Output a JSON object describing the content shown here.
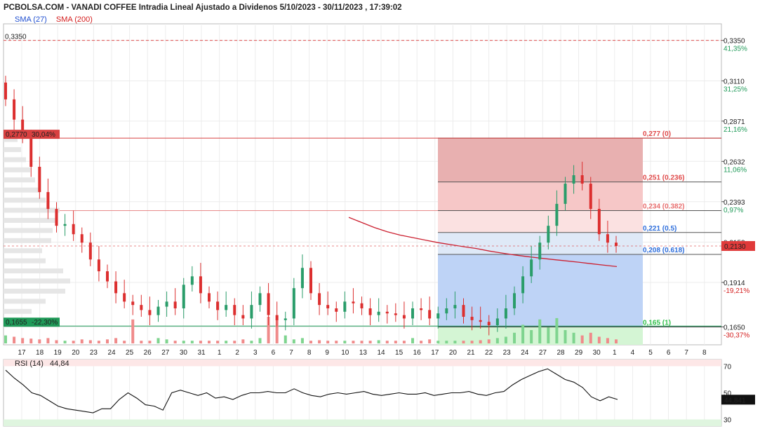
{
  "header": {
    "title": "PCBOLSA.COM - VANADI COFFEE Intradia Lineal Ajustado a Dividenos 5/10/2023 - 30/11/2023 , 17:39:02",
    "legend_sma27": "SMA (27)",
    "legend_sma200": "SMA (200)"
  },
  "colors": {
    "up": "#2a9d6a",
    "down": "#dc2f2f",
    "sma200": "#cc2030",
    "fib_red": "#e04a4a",
    "fib_blue": "#2f6fdc",
    "volume_up": "#7fd48f",
    "volume_down": "#f08a8a",
    "grid": "#ececec"
  },
  "chart_data": [
    {
      "type": "candlestick",
      "title": "PCBOLSA.COM - VANADI COFFEE Intradia Lineal Ajustado a Dividenos 5/10/2023 - 30/11/2023 , 17:39:02",
      "y_ticks": [
        "0,3350",
        "0,3110",
        "0,2871",
        "0,2632",
        "0,2393",
        "0,2153",
        "0,1914",
        "0,1650"
      ],
      "y_pct_ticks": [
        "41,35%",
        "31,25%",
        "21,16%",
        "11,06%",
        "0,97%",
        "-19,21%",
        "-30,37%"
      ],
      "x_ticks": [
        "17",
        "18",
        "19",
        "20",
        "23",
        "24",
        "25",
        "26",
        "27",
        "30",
        "31",
        "1",
        "2",
        "3",
        "6",
        "7",
        "8",
        "9",
        "10",
        "13",
        "14",
        "15",
        "16",
        "17",
        "20",
        "21",
        "22",
        "23",
        "24",
        "27",
        "28",
        "29",
        "30",
        "1",
        "4",
        "5",
        "6",
        "7",
        "8"
      ],
      "ylim": [
        0.1577,
        0.3465
      ],
      "max_label": "0,3350",
      "current_price_label": "0,2130",
      "grid": true,
      "series": [
        {
          "name": "SMA (200)",
          "kind": "line",
          "values": [
            0.23,
            0.227,
            0.224,
            0.2215,
            0.2195,
            0.218,
            0.2165,
            0.215,
            0.2138,
            0.2126,
            0.2115,
            0.21,
            0.2088,
            0.2077,
            0.2067,
            0.2058,
            0.205,
            0.2042,
            0.2034,
            0.2025,
            0.2016,
            0.2008
          ]
        }
      ],
      "price_close": [
        0.3,
        0.288,
        0.278,
        0.26,
        0.245,
        0.235,
        0.225,
        0.226,
        0.22,
        0.215,
        0.205,
        0.198,
        0.192,
        0.185,
        0.18,
        0.178,
        0.175,
        0.172,
        0.177,
        0.18,
        0.176,
        0.19,
        0.195,
        0.185,
        0.18,
        0.175,
        0.178,
        0.172,
        0.17,
        0.178,
        0.185,
        0.172,
        0.169,
        0.17,
        0.188,
        0.2,
        0.185,
        0.178,
        0.176,
        0.174,
        0.18,
        0.179,
        0.176,
        0.172,
        0.174,
        0.173,
        0.172,
        0.17,
        0.176,
        0.175,
        0.17,
        0.173,
        0.176,
        0.178,
        0.171,
        0.169,
        0.168,
        0.166,
        0.17,
        0.176,
        0.185,
        0.195,
        0.205,
        0.215,
        0.225,
        0.238,
        0.25,
        0.255,
        0.25,
        0.235,
        0.22,
        0.215,
        0.213
      ],
      "volume": [
        0.3,
        0.25,
        0.2,
        0.18,
        0.15,
        0.2,
        0.12,
        0.1,
        0.1,
        0.15,
        0.12,
        0.1,
        0.15,
        0.2,
        0.1,
        0.9,
        0.1,
        0.1,
        0.2,
        0.15,
        0.1,
        0.1,
        0.1,
        0.1,
        0.1,
        0.1,
        0.1,
        0.1,
        0.15,
        0.1,
        0.2,
        1.0,
        0.9,
        0.3,
        0.15,
        0.2,
        0.1,
        0.12,
        0.1,
        0.1,
        0.1,
        0.1,
        0.1,
        0.1,
        0.12,
        0.1,
        0.1,
        0.1,
        0.2,
        0.1,
        0.15,
        0.1,
        0.1,
        0.1,
        0.1,
        0.1,
        0.12,
        0.15,
        0.2,
        0.25,
        0.4,
        0.7,
        0.5,
        0.9,
        0.6,
        0.95,
        0.5,
        0.4,
        0.3,
        0.4,
        0.25,
        0.2,
        0.15
      ]
    },
    {
      "type": "fibonacci_retracement",
      "levels": [
        {
          "label": "0,277 (0)",
          "value": 0.277
        },
        {
          "label": "0,251 (0.236)",
          "value": 0.251
        },
        {
          "label": "0,234 (0.382)",
          "value": 0.234
        },
        {
          "label": "0,221 (0.5)",
          "value": 0.221
        },
        {
          "label": "0,208 (0.618)",
          "value": 0.208
        },
        {
          "label": "0,165 (1)",
          "value": 0.165
        }
      ],
      "price_lines": [
        {
          "label": "0,2770",
          "pct": "30,04%",
          "value": 0.277
        },
        {
          "label": "0,1655",
          "pct": "-22,30%",
          "value": 0.1655
        }
      ]
    },
    {
      "type": "line",
      "title": "RSI (14)",
      "current_value": "44,84",
      "current_label": "44,841",
      "y_ticks": [
        "70",
        "50",
        "30"
      ],
      "ylim": [
        25,
        75
      ],
      "values": [
        67,
        61,
        56,
        50,
        48,
        44,
        40,
        38,
        37,
        36,
        35,
        38,
        38,
        45,
        50,
        46,
        41,
        40,
        37,
        50,
        52,
        50,
        48,
        50,
        46,
        47,
        45,
        48,
        50,
        50,
        51,
        50,
        50,
        53,
        50,
        48,
        47,
        49,
        50,
        49,
        50,
        51,
        49,
        48,
        49,
        50,
        49,
        49,
        50,
        48,
        49,
        50,
        50,
        51,
        49,
        48,
        50,
        51,
        56,
        60,
        63,
        66,
        68,
        64,
        60,
        58,
        54,
        47,
        44,
        47,
        45
      ]
    }
  ]
}
